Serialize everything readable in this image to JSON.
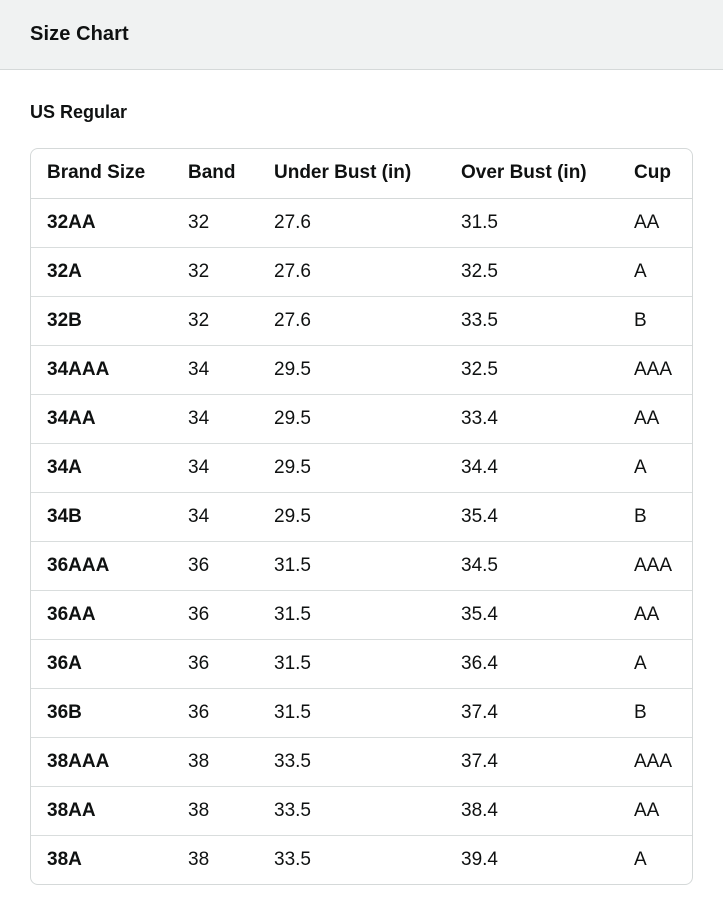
{
  "header": {
    "title": "Size Chart"
  },
  "section": {
    "title": "US Regular"
  },
  "table": {
    "columns": [
      "Brand Size",
      "Band",
      "Under Bust (in)",
      "Over Bust (in)",
      "Cup"
    ],
    "rows": [
      [
        "32AA",
        "32",
        "27.6",
        "31.5",
        "AA"
      ],
      [
        "32A",
        "32",
        "27.6",
        "32.5",
        "A"
      ],
      [
        "32B",
        "32",
        "27.6",
        "33.5",
        "B"
      ],
      [
        "34AAA",
        "34",
        "29.5",
        "32.5",
        "AAA"
      ],
      [
        "34AA",
        "34",
        "29.5",
        "33.4",
        "AA"
      ],
      [
        "34A",
        "34",
        "29.5",
        "34.4",
        "A"
      ],
      [
        "34B",
        "34",
        "29.5",
        "35.4",
        "B"
      ],
      [
        "36AAA",
        "36",
        "31.5",
        "34.5",
        "AAA"
      ],
      [
        "36AA",
        "36",
        "31.5",
        "35.4",
        "AA"
      ],
      [
        "36A",
        "36",
        "31.5",
        "36.4",
        "A"
      ],
      [
        "36B",
        "36",
        "31.5",
        "37.4",
        "B"
      ],
      [
        "38AAA",
        "38",
        "33.5",
        "37.4",
        "AAA"
      ],
      [
        "38AA",
        "38",
        "33.5",
        "38.4",
        "AA"
      ],
      [
        "38A",
        "38",
        "33.5",
        "39.4",
        "A"
      ]
    ]
  },
  "colors": {
    "header_bg": "#f0f2f2",
    "border": "#d5d9d9",
    "text": "#0f1111"
  }
}
